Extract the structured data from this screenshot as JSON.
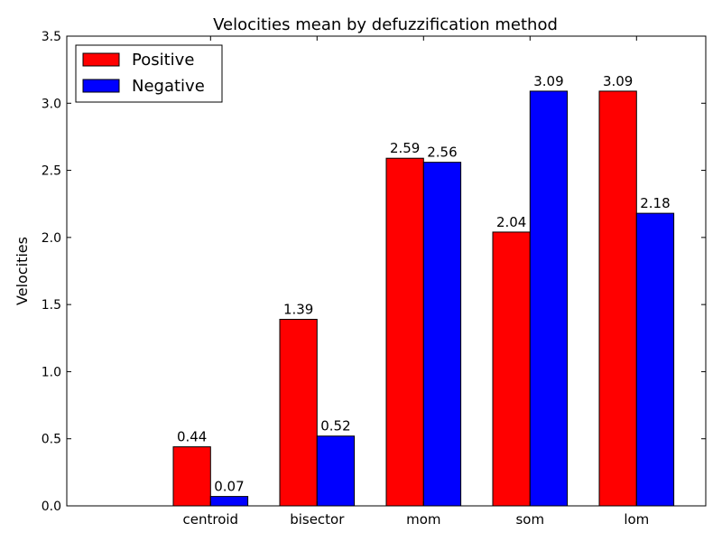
{
  "chart_data": {
    "type": "bar",
    "title": "Velocities mean by defuzzification method",
    "xlabel": "",
    "ylabel": "Velocities",
    "categories": [
      "centroid",
      "bisector",
      "mom",
      "som",
      "lom"
    ],
    "series": [
      {
        "name": "Positive",
        "values": [
          0.44,
          1.39,
          2.59,
          2.04,
          3.09
        ],
        "labels": [
          "0.44",
          "1.39",
          "2.59",
          "2.04",
          "3.09"
        ],
        "color": "#ff0000"
      },
      {
        "name": "Negative",
        "values": [
          0.07,
          0.52,
          2.56,
          3.09,
          2.18
        ],
        "labels": [
          "0.07",
          "0.52",
          "2.56",
          "3.09",
          "2.18"
        ],
        "color": "#0000ff"
      }
    ],
    "ylim": [
      0,
      3.5
    ],
    "yticks": [
      "0.0",
      "0.5",
      "1.0",
      "1.5",
      "2.0",
      "2.5",
      "3.0",
      "3.5"
    ],
    "grid": false,
    "legend": "top-left"
  }
}
